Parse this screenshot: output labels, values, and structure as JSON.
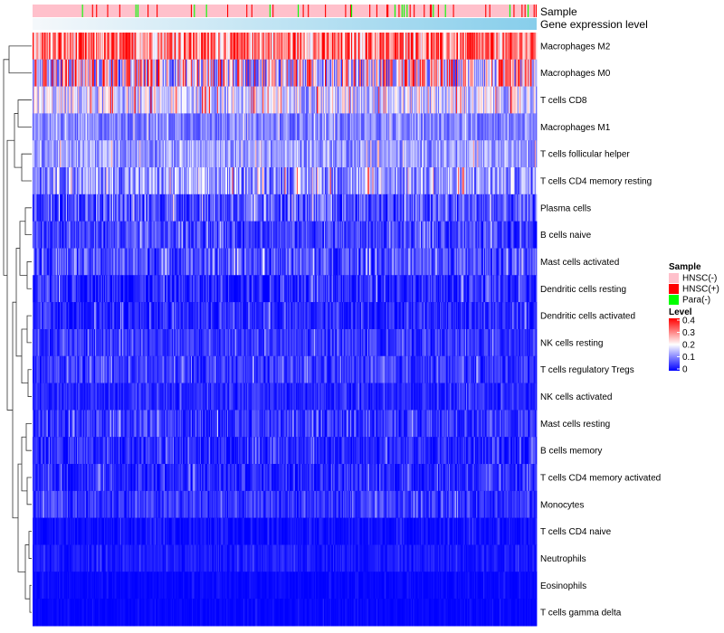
{
  "chart_data": {
    "type": "heatmap",
    "title": "",
    "annotation_tracks": [
      {
        "name": "Sample",
        "kind": "categorical"
      },
      {
        "name": "Gene expression level",
        "kind": "gradient",
        "colors": [
          "#f5f8fb",
          "#87ceeb"
        ]
      }
    ],
    "rows": [
      {
        "label": "Macrophages M2",
        "mean": 0.29,
        "spread": 0.12
      },
      {
        "label": "Macrophages M0",
        "mean": 0.2,
        "spread": 0.18
      },
      {
        "label": "T cells CD8",
        "mean": 0.17,
        "spread": 0.1
      },
      {
        "label": "Macrophages M1",
        "mean": 0.1,
        "spread": 0.05
      },
      {
        "label": "T cells follicular helper",
        "mean": 0.12,
        "spread": 0.06
      },
      {
        "label": "T cells CD4 memory resting",
        "mean": 0.12,
        "spread": 0.09
      },
      {
        "label": "Plasma cells",
        "mean": 0.06,
        "spread": 0.07
      },
      {
        "label": "B cells naive",
        "mean": 0.05,
        "spread": 0.05
      },
      {
        "label": "Mast cells activated",
        "mean": 0.06,
        "spread": 0.06
      },
      {
        "label": "Dendritic cells resting",
        "mean": 0.03,
        "spread": 0.05
      },
      {
        "label": "Dendritic cells activated",
        "mean": 0.03,
        "spread": 0.04
      },
      {
        "label": "NK cells resting",
        "mean": 0.04,
        "spread": 0.04
      },
      {
        "label": "T cells regulatory  Tregs",
        "mean": 0.04,
        "spread": 0.04
      },
      {
        "label": "NK cells activated",
        "mean": 0.03,
        "spread": 0.03
      },
      {
        "label": "Mast cells resting",
        "mean": 0.04,
        "spread": 0.05
      },
      {
        "label": "B cells memory",
        "mean": 0.03,
        "spread": 0.04
      },
      {
        "label": "T cells CD4 memory activated",
        "mean": 0.03,
        "spread": 0.04
      },
      {
        "label": "Monocytes",
        "mean": 0.04,
        "spread": 0.04
      },
      {
        "label": "T cells CD4 naive",
        "mean": 0.01,
        "spread": 0.02
      },
      {
        "label": "Neutrophils",
        "mean": 0.02,
        "spread": 0.02
      },
      {
        "label": "Eosinophils",
        "mean": 0.005,
        "spread": 0.01
      },
      {
        "label": "T cells gamma delta",
        "mean": 0.004,
        "spread": 0.01
      }
    ],
    "n_columns": 500,
    "value_range": [
      0,
      0.4
    ],
    "colorscale": [
      "#0000ff",
      "#ffffff",
      "#ff0000"
    ],
    "legend": {
      "position": "right",
      "sample": {
        "title": "Sample",
        "items": [
          {
            "label": "HNSC(-)",
            "color": "#ffc0cb"
          },
          {
            "label": "HNSC(+)",
            "color": "#ff0000"
          },
          {
            "label": "Para(-)",
            "color": "#00ff00"
          }
        ]
      },
      "level": {
        "title": "Level",
        "ticks": [
          "0.4",
          "0.3",
          "0.2",
          "0.1",
          "0"
        ],
        "tick_values": [
          0.4,
          0.3,
          0.2,
          0.1,
          0
        ]
      }
    }
  }
}
